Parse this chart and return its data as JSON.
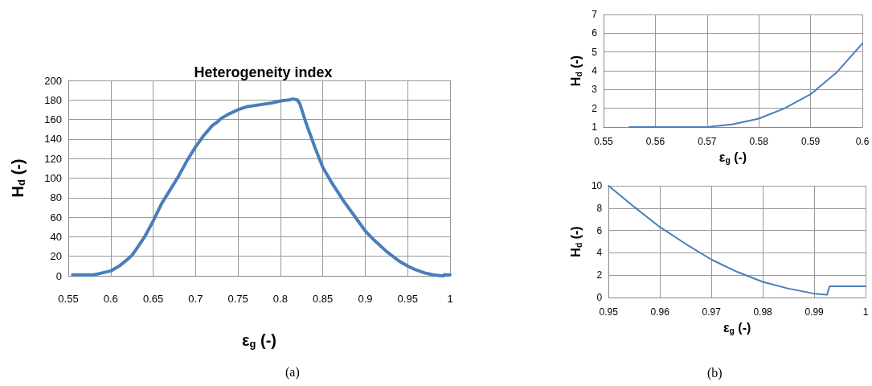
{
  "chart_data": [
    {
      "type": "line",
      "title": "Heterogeneity index",
      "xlabel": "ε$_{g}$ (-)",
      "ylabel": "H$_{d}$ (-)",
      "annotations": [
        "(a)"
      ],
      "xlim": [
        0.55,
        1
      ],
      "xticks": [
        0.55,
        0.6,
        0.65,
        0.7,
        0.75,
        0.8,
        0.85,
        0.9,
        0.95,
        1
      ],
      "ylim": [
        0,
        200
      ],
      "yticks": [
        0,
        20,
        40,
        60,
        80,
        100,
        120,
        140,
        160,
        180,
        200
      ],
      "grid": true,
      "marker": "none",
      "line_style": "solid",
      "series": [
        {
          "color": "#4a7ebb",
          "x": [
            0.555,
            0.57,
            0.58,
            0.59,
            0.6,
            0.61,
            0.62,
            0.625,
            0.63,
            0.64,
            0.65,
            0.66,
            0.67,
            0.675,
            0.68,
            0.69,
            0.7,
            0.71,
            0.72,
            0.725,
            0.73,
            0.74,
            0.75,
            0.76,
            0.775,
            0.79,
            0.8,
            0.81,
            0.815,
            0.82,
            0.823,
            0.83,
            0.84,
            0.85,
            0.86,
            0.875,
            0.89,
            0.9,
            0.91,
            0.925,
            0.94,
            0.95,
            0.96,
            0.97,
            0.98,
            0.99,
            0.9925,
            0.993,
            1
          ],
          "values": [
            1,
            1,
            1,
            3,
            5,
            10,
            17,
            21,
            27,
            40,
            56,
            74,
            88,
            95,
            102,
            118,
            132,
            144,
            154,
            157,
            161,
            166,
            170,
            173,
            175,
            177,
            179,
            180,
            181,
            180,
            176,
            157,
            133,
            111,
            96,
            76,
            58,
            46,
            37,
            25,
            15,
            10,
            6,
            3,
            1,
            0,
            0,
            1,
            1
          ]
        }
      ]
    },
    {
      "type": "line",
      "xlabel": "ε$_{g}$ (-)",
      "ylabel": "H$_{d}$ (-)",
      "xlim": [
        0.55,
        0.6
      ],
      "xticks": [
        0.55,
        0.56,
        0.57,
        0.58,
        0.59,
        0.6
      ],
      "ylim": [
        1,
        7
      ],
      "yticks": [
        1,
        2,
        3,
        4,
        5,
        6,
        7
      ],
      "grid": true,
      "marker": "none",
      "line_style": "solid",
      "series": [
        {
          "color": "#4a7ebb",
          "x": [
            0.555,
            0.56,
            0.565,
            0.57,
            0.575,
            0.58,
            0.585,
            0.59,
            0.595,
            0.6
          ],
          "values": [
            1,
            1,
            1,
            1,
            1.15,
            1.45,
            2,
            2.75,
            3.9,
            5.45
          ]
        }
      ]
    },
    {
      "type": "line",
      "xlabel": "ε$_{g}$ (-)",
      "ylabel": "H$_{d}$ (-)",
      "annotations": [
        "(b)"
      ],
      "xlim": [
        0.95,
        1
      ],
      "xticks": [
        0.95,
        0.96,
        0.97,
        0.98,
        0.99,
        1
      ],
      "ylim": [
        0,
        10
      ],
      "yticks": [
        0,
        2,
        4,
        6,
        8,
        10
      ],
      "grid": true,
      "marker": "none",
      "line_style": "solid",
      "series": [
        {
          "color": "#4a7ebb",
          "x": [
            0.95,
            0.955,
            0.96,
            0.965,
            0.97,
            0.975,
            0.98,
            0.985,
            0.99,
            0.9925,
            0.993,
            1
          ],
          "values": [
            10,
            8.1,
            6.3,
            4.8,
            3.4,
            2.3,
            1.4,
            0.8,
            0.35,
            0.25,
            1,
            1
          ]
        }
      ]
    }
  ]
}
